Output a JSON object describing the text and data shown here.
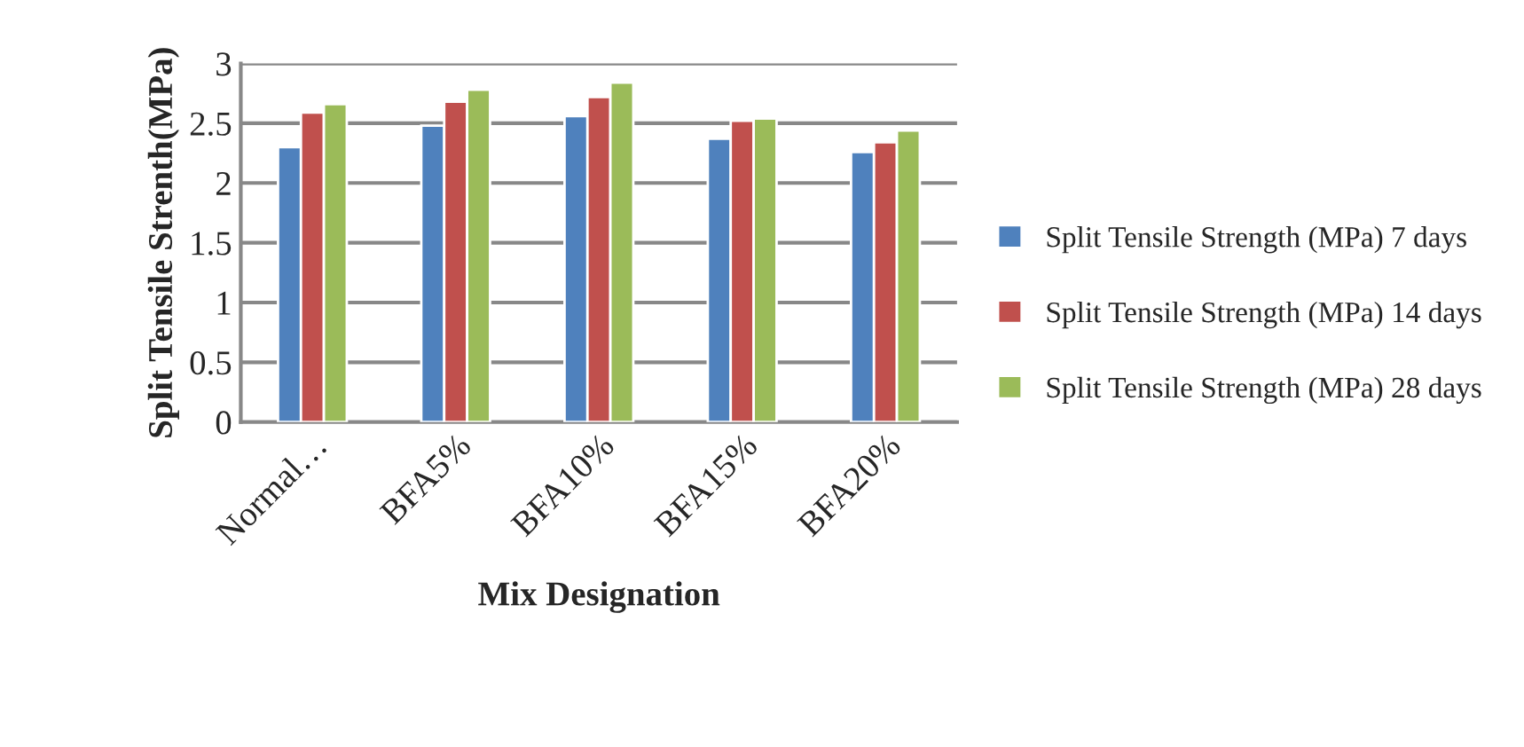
{
  "chart_data": {
    "type": "bar",
    "xlabel": "Mix Designation",
    "ylabel": "Split Tensile Strenth(MPa)",
    "categories": [
      "Normal…",
      "BFA5%",
      "BFA10%",
      "BFA15%",
      "BFA20%"
    ],
    "series": [
      {
        "name": "Split Tensile Strength (MPa) 7 days",
        "color": "#4f81bd",
        "values": [
          2.3,
          2.48,
          2.56,
          2.37,
          2.26
        ]
      },
      {
        "name": "Split Tensile Strength (MPa) 14 days",
        "color": "#c0504d",
        "values": [
          2.59,
          2.68,
          2.72,
          2.52,
          2.34
        ]
      },
      {
        "name": "Split Tensile Strength (MPa) 28 days",
        "color": "#9bbb59",
        "values": [
          2.66,
          2.78,
          2.84,
          2.54,
          2.44
        ]
      }
    ],
    "ylim": [
      0,
      3
    ],
    "yticks": [
      0,
      0.5,
      1,
      1.5,
      2,
      2.5,
      3
    ],
    "grid": "y",
    "legend": "right"
  }
}
